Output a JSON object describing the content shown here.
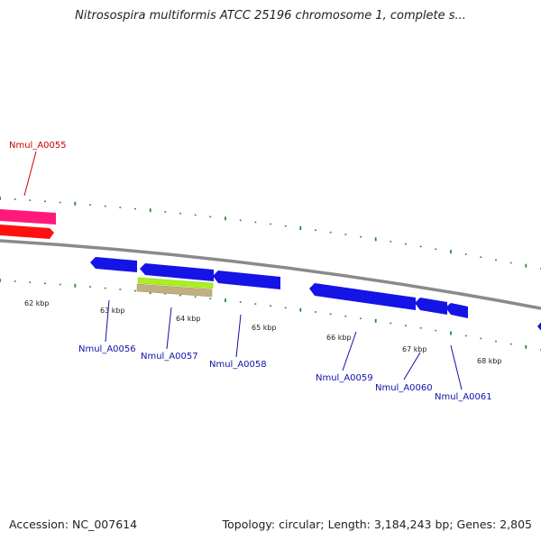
{
  "title": "Nitrosospira multiformis ATCC 25196 chromosome 1, complete s...",
  "footer": {
    "accession": "Accession: NC_007614",
    "summary": "Topology: circular; Length: 3,184,243 bp; Genes: 2,805"
  },
  "colors": {
    "backbone": "#8a8a8a",
    "ticks": "#2a8a2a",
    "gene_forward": "#ff1a5c",
    "gene_reverse": "#1010e0",
    "highlight_label": "#cc0000",
    "gene_label": "#1010aa"
  },
  "scale": {
    "kbp_labels": [
      "62 kbp",
      "63 kbp",
      "64 kbp",
      "65 kbp",
      "66 kbp",
      "67 kbp",
      "68 kbp"
    ]
  },
  "genes": [
    {
      "name": "Nmul_A0055",
      "highlight": true
    },
    {
      "name": "Nmul_A0056"
    },
    {
      "name": "Nmul_A0057"
    },
    {
      "name": "Nmul_A0058"
    },
    {
      "name": "Nmul_A0059"
    },
    {
      "name": "Nmul_A0060"
    },
    {
      "name": "Nmul_A0061"
    }
  ]
}
